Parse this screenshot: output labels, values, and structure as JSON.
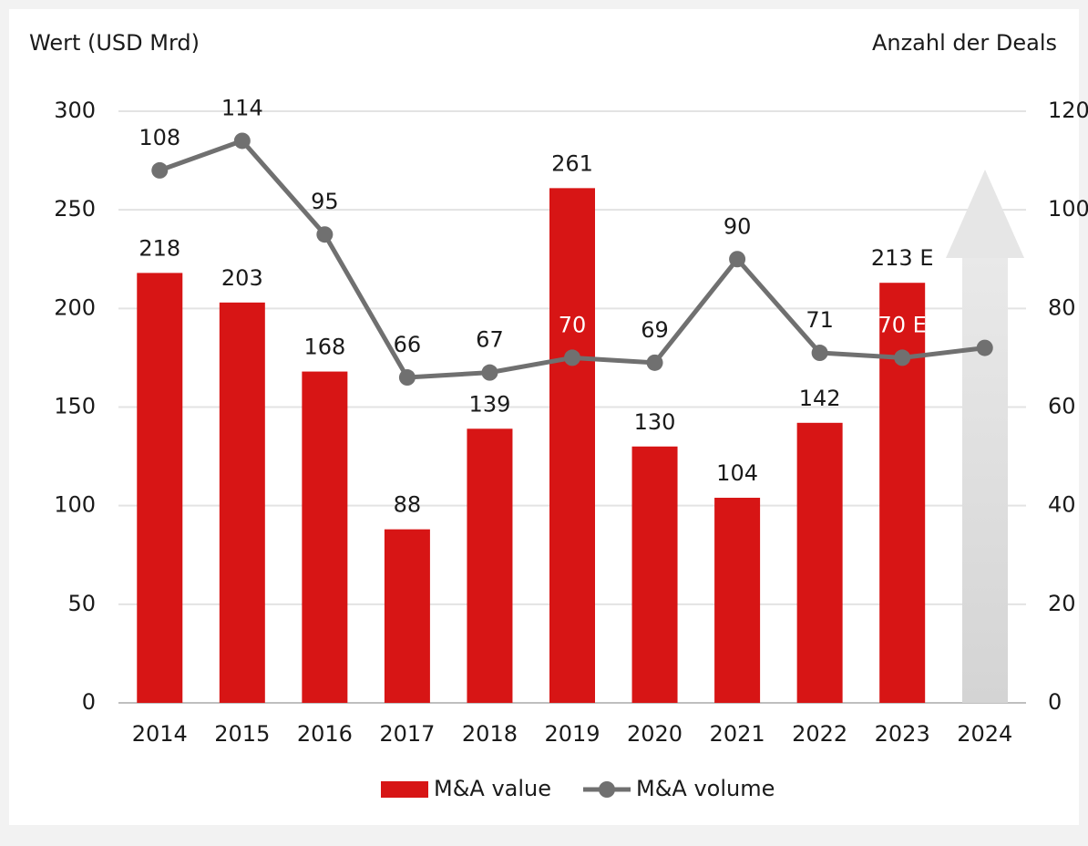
{
  "chart_data": {
    "type": "bar-line",
    "y_axis_title": "Wert (USD Mrd)",
    "y2_axis_title": "Anzahl der Deals",
    "categories": [
      "2014",
      "2015",
      "2016",
      "2017",
      "2018",
      "2019",
      "2020",
      "2021",
      "2022",
      "2023",
      "2024"
    ],
    "series": [
      {
        "name": "M&A value",
        "type": "bar",
        "color": "#d71515",
        "values": [
          218,
          203,
          168,
          88,
          139,
          261,
          130,
          104,
          142,
          213,
          null
        ],
        "value_labels": [
          "218",
          "203",
          "168",
          "88",
          "139",
          "261",
          "130",
          "104",
          "142",
          "213 E",
          null
        ]
      },
      {
        "name": "M&A volume",
        "type": "line",
        "color": "#707070",
        "axis": "y2",
        "values": [
          108,
          114,
          95,
          66,
          67,
          70,
          69,
          90,
          71,
          70,
          72
        ],
        "value_labels": [
          "108",
          "114",
          "95",
          "66",
          "67",
          "70",
          "69",
          "90",
          "71",
          "70 E",
          null
        ]
      }
    ],
    "ylim": [
      0,
      300
    ],
    "yticks": [
      0,
      50,
      100,
      150,
      200,
      250,
      300
    ],
    "y2lim": [
      0,
      120
    ],
    "y2ticks": [
      0,
      20,
      40,
      60,
      80,
      100,
      120
    ],
    "grid": true
  }
}
